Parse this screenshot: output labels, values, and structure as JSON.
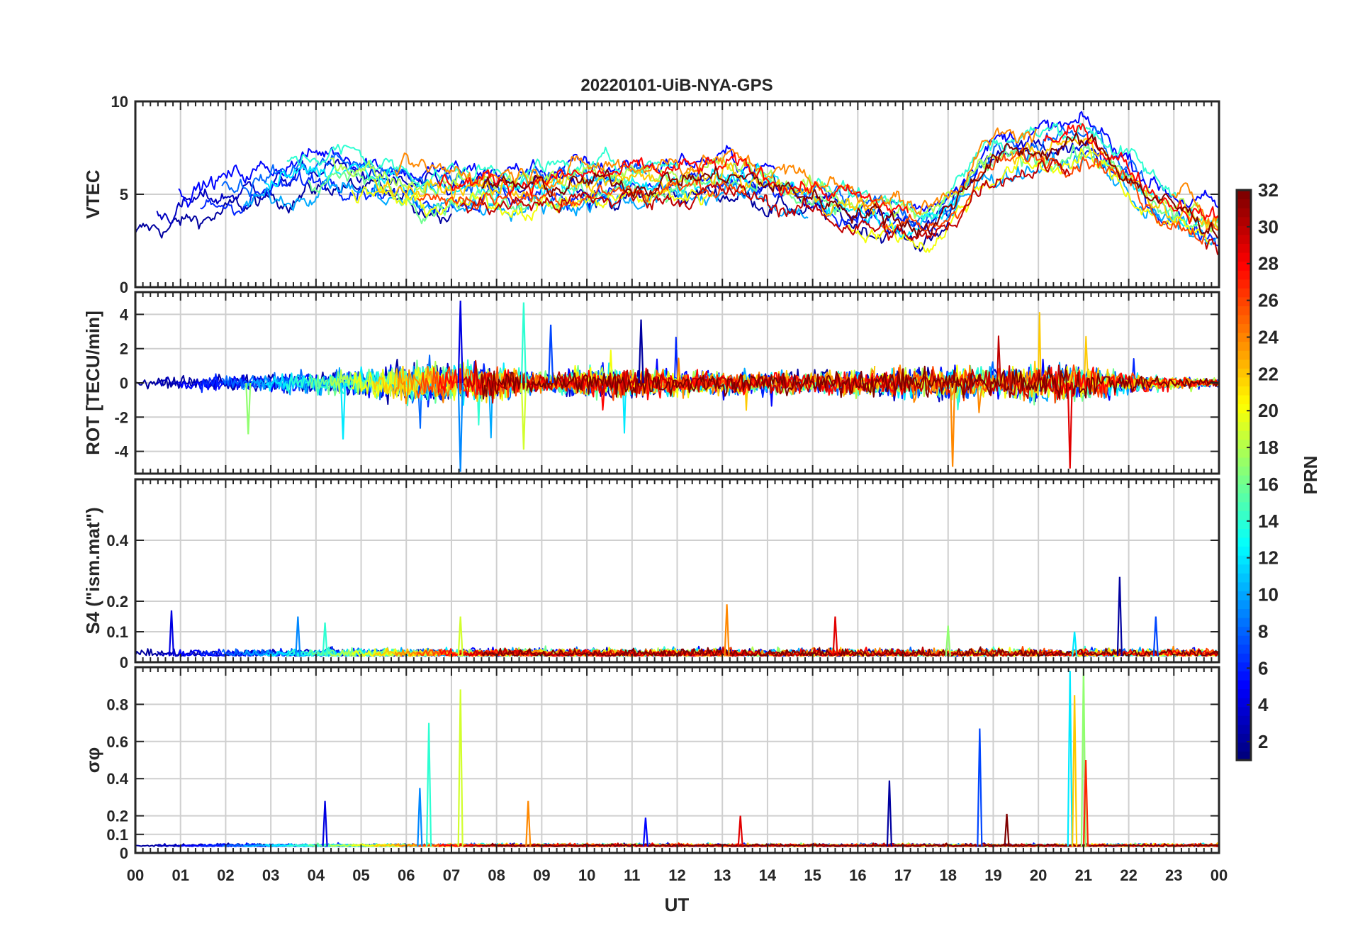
{
  "chart_data": {
    "type": "line",
    "title": "20220101-UiB-NYA-GPS",
    "xlabel": "UT",
    "x_tick_labels": [
      "00",
      "01",
      "02",
      "03",
      "04",
      "05",
      "06",
      "07",
      "08",
      "09",
      "10",
      "11",
      "12",
      "13",
      "14",
      "15",
      "16",
      "17",
      "18",
      "19",
      "20",
      "21",
      "22",
      "23",
      "00"
    ],
    "xlim": [
      0,
      24
    ],
    "panels": [
      {
        "id": "vtec",
        "ylabel": "VTEC",
        "ylim": [
          0,
          10
        ],
        "yticks": [
          0,
          5,
          10
        ],
        "ytick_labels": [
          "0",
          "5",
          "10"
        ],
        "baseline": 3.8,
        "noise": 0.6,
        "activity": [
          [
            0,
            3.8
          ],
          [
            4.3,
            6.5
          ],
          [
            6,
            5.2
          ],
          [
            9,
            5.4
          ],
          [
            13,
            6.0
          ],
          [
            17.5,
            3.2
          ],
          [
            18.7,
            7.0
          ],
          [
            21,
            7.8
          ],
          [
            22.5,
            4.5
          ],
          [
            24,
            3.0
          ]
        ],
        "spread": 1.2
      },
      {
        "id": "rot",
        "ylabel": "ROT [TECU/min]",
        "ylim": [
          -5.3,
          5.3
        ],
        "yticks": [
          -4,
          -2,
          0,
          2,
          4
        ],
        "ytick_labels": [
          "-4",
          "-2",
          "0",
          "2",
          "4"
        ],
        "baseline": 0,
        "noise": 0.25,
        "activity": [
          [
            0,
            0.3
          ],
          [
            4,
            1.0
          ],
          [
            5,
            1.2
          ],
          [
            6.5,
            1.8
          ],
          [
            8,
            1.4
          ],
          [
            9,
            0.8
          ],
          [
            10.5,
            1.3
          ],
          [
            13,
            1.0
          ],
          [
            15,
            0.9
          ],
          [
            18,
            1.4
          ],
          [
            21,
            1.6
          ],
          [
            22.5,
            0.6
          ],
          [
            24,
            0.3
          ]
        ],
        "spikes": [
          [
            7.2,
            4.8
          ],
          [
            7.2,
            -5.2
          ],
          [
            8.6,
            4.7
          ],
          [
            8.6,
            -3.9
          ],
          [
            18.1,
            -4.9
          ],
          [
            20.7,
            -5.0
          ],
          [
            11.2,
            3.7
          ],
          [
            9.2,
            3.4
          ],
          [
            4.6,
            -3.3
          ],
          [
            2.5,
            -3.0
          ]
        ]
      },
      {
        "id": "s4",
        "ylabel": "S4 (\"ism.mat\")",
        "ylim": [
          0,
          0.6
        ],
        "yticks": [
          0,
          0.1,
          0.2,
          0.4
        ],
        "ytick_labels": [
          "0",
          "0.1",
          "0.2",
          "0.4"
        ],
        "baseline": 0.02,
        "noise": 0.02,
        "spikes": [
          [
            0.8,
            0.17
          ],
          [
            3.6,
            0.15
          ],
          [
            4.2,
            0.13
          ],
          [
            7.2,
            0.15
          ],
          [
            13.1,
            0.19
          ],
          [
            15.5,
            0.15
          ],
          [
            21.8,
            0.28
          ],
          [
            22.6,
            0.15
          ],
          [
            20.8,
            0.1
          ],
          [
            18,
            0.12
          ]
        ]
      },
      {
        "id": "sigma",
        "ylabel": "σφ",
        "ylim": [
          0,
          1
        ],
        "yticks": [
          0,
          0.1,
          0.2,
          0.4,
          0.6,
          0.8
        ],
        "ytick_labels": [
          "0",
          "0.1",
          "0.2",
          "0.4",
          "0.6",
          "0.8"
        ],
        "baseline": 0.035,
        "noise": 0.012,
        "spikes": [
          [
            4.2,
            0.28
          ],
          [
            6.3,
            0.35
          ],
          [
            6.5,
            0.7
          ],
          [
            7.2,
            0.88
          ],
          [
            8.7,
            0.28
          ],
          [
            13.4,
            0.2
          ],
          [
            16.7,
            0.39
          ],
          [
            18.7,
            0.67
          ],
          [
            20.7,
            0.98
          ],
          [
            21.0,
            1.0
          ],
          [
            20.8,
            0.85
          ],
          [
            21.05,
            0.5
          ],
          [
            19.3,
            0.21
          ],
          [
            11.3,
            0.19
          ]
        ]
      }
    ],
    "colorbar": {
      "label": "PRN",
      "range": [
        1,
        32
      ],
      "ticks": [
        2,
        4,
        6,
        8,
        10,
        12,
        14,
        16,
        18,
        20,
        22,
        24,
        26,
        28,
        30,
        32
      ],
      "tick_labels": [
        "2",
        "4",
        "6",
        "8",
        "10",
        "12",
        "14",
        "16",
        "18",
        "20",
        "22",
        "24",
        "26",
        "28",
        "30",
        "32"
      ],
      "colormap": "jet"
    },
    "series_prn": [
      2,
      3,
      5,
      6,
      8,
      10,
      12,
      14,
      16,
      18,
      20,
      22,
      24,
      26,
      28,
      30,
      32
    ]
  }
}
